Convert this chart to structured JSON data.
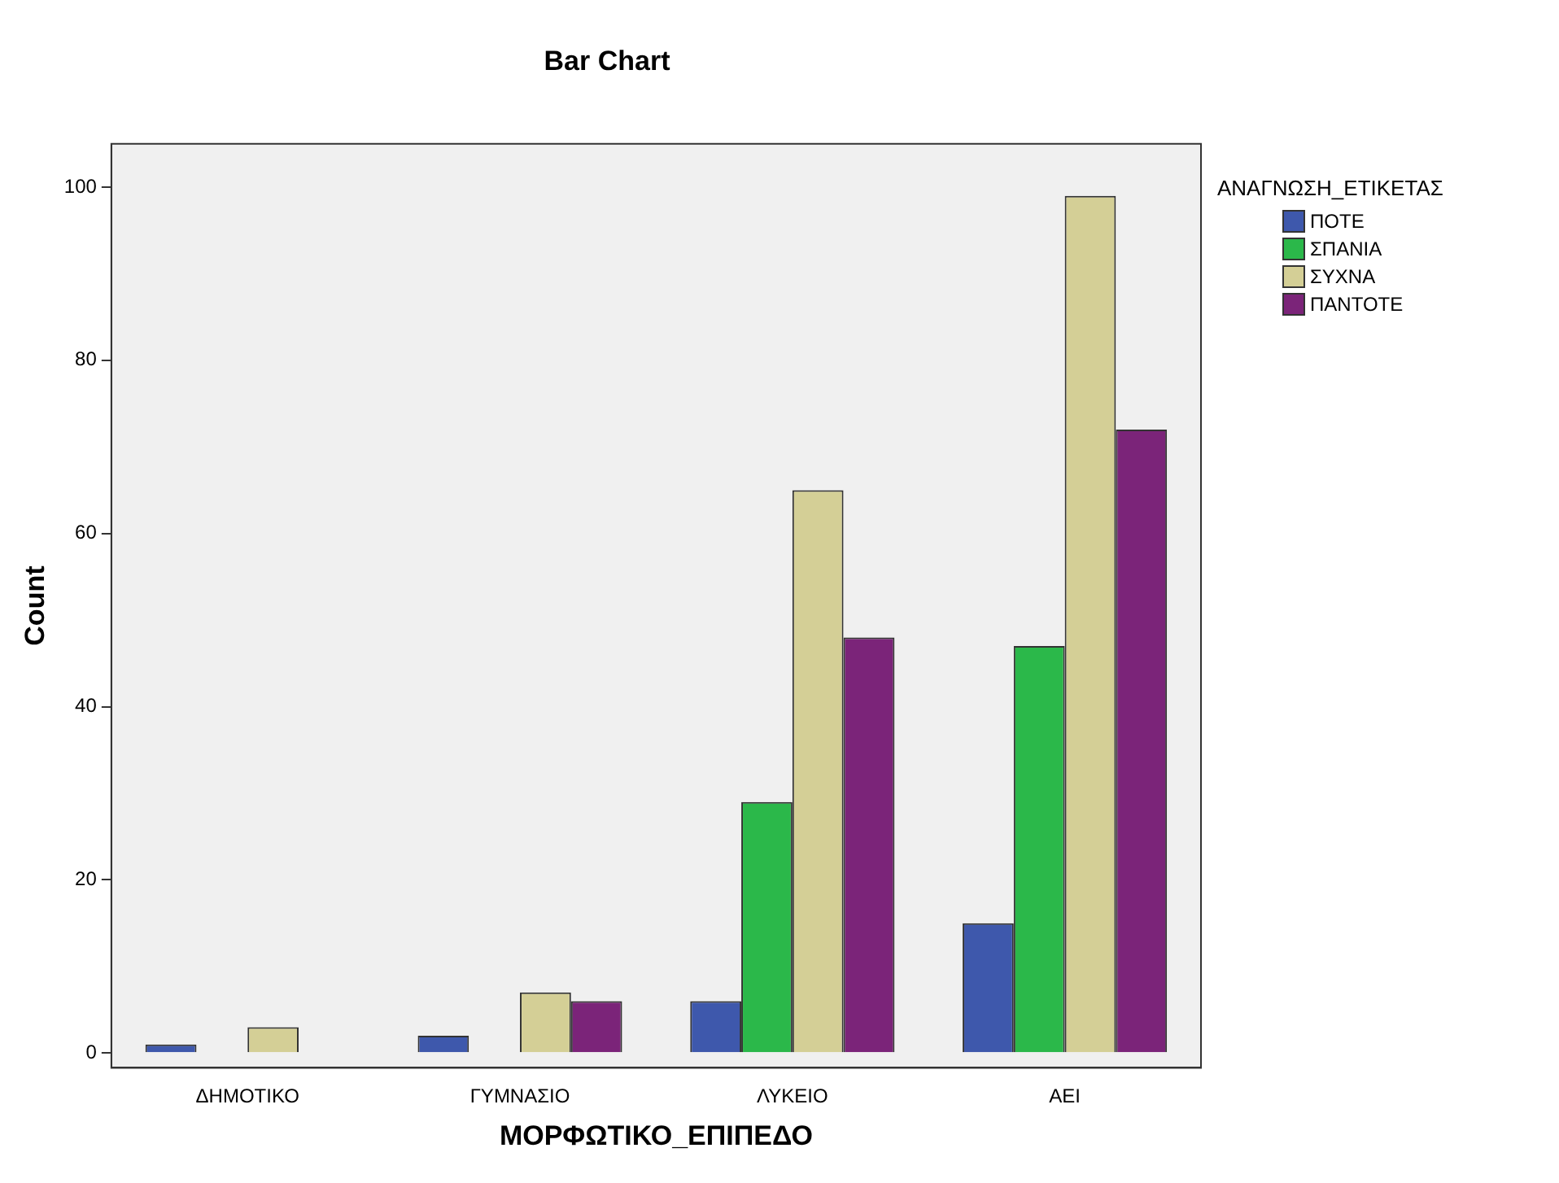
{
  "chart_data": {
    "type": "bar",
    "title": "Bar Chart",
    "xlabel": "ΜΟΡΦΩΤΙΚΟ_ΕΠΙΠΕΔΟ",
    "ylabel": "Count",
    "legend_title": "ΑΝΑΓΝΩΣΗ_ΕΤΙΚΕΤΑΣ",
    "legend": "top right",
    "grid": false,
    "categories": [
      "ΔΗΜΟΤΙΚΟ",
      "ΓΥΜΝΑΣΙΟ",
      "ΛΥΚΕΙΟ",
      "ΑΕΙ"
    ],
    "ylim": [
      -1.7,
      105
    ],
    "yticks": [
      0,
      20,
      40,
      60,
      80,
      100
    ],
    "series": [
      {
        "name": "ΠΟΤΕ",
        "color": "#3e58ac",
        "values": [
          1,
          2,
          6,
          15
        ]
      },
      {
        "name": "ΣΠΑΝΙΑ",
        "color": "#2bb84a",
        "values": [
          null,
          null,
          29,
          47
        ]
      },
      {
        "name": "ΣΥΧΝΑ",
        "color": "#d4cf96",
        "values": [
          3,
          7,
          65,
          99
        ]
      },
      {
        "name": "ΠΑΝΤΟΤΕ",
        "color": "#7b2479",
        "values": [
          null,
          6,
          48,
          72
        ]
      }
    ]
  }
}
